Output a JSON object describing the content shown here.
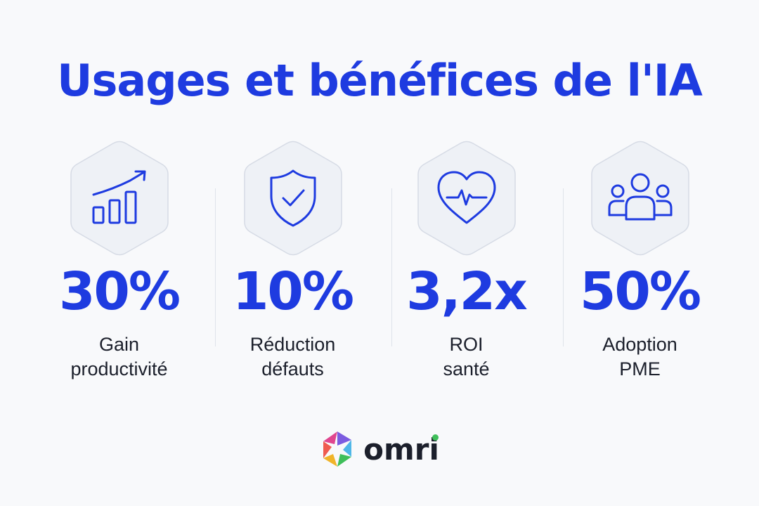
{
  "title": "Usages et bénéfices de l'IA",
  "colors": {
    "accent": "#1e3be0",
    "text": "#1b1f2b",
    "hex_fill": "#eef1f6",
    "hex_stroke": "#d6dbe5"
  },
  "stats": [
    {
      "icon": "growth-chart-icon",
      "value": "30%",
      "label_line1": "Gain",
      "label_line2": "productivité"
    },
    {
      "icon": "shield-check-icon",
      "value": "10%",
      "label_line1": "Réduction",
      "label_line2": "défauts"
    },
    {
      "icon": "heart-pulse-icon",
      "value": "3,2x",
      "label_line1": "ROI",
      "label_line2": "santé"
    },
    {
      "icon": "people-group-icon",
      "value": "50%",
      "label_line1": "Adoption",
      "label_line2": "PME"
    }
  ],
  "brand": {
    "name": "omri",
    "logo": "omri-hexagon-logo"
  }
}
